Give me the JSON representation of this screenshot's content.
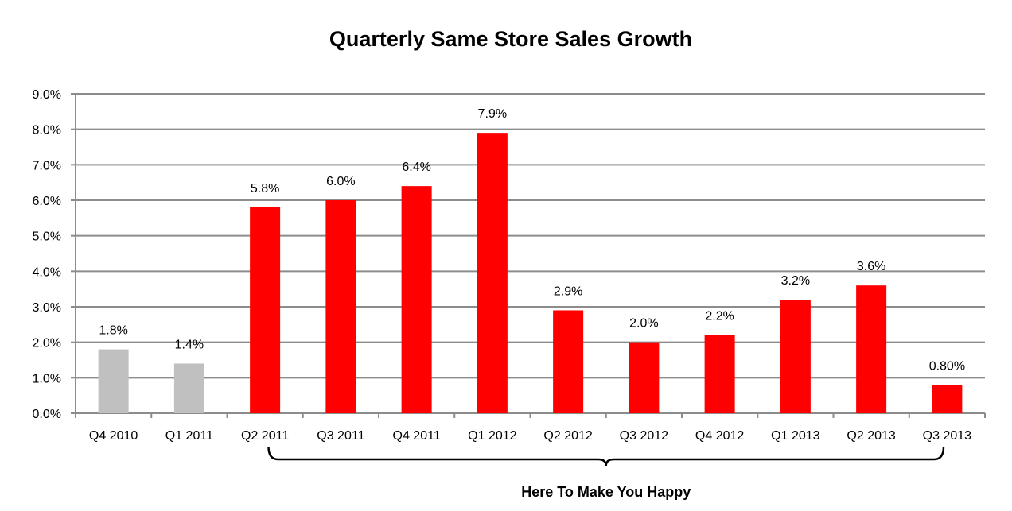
{
  "chart_data": {
    "type": "bar",
    "title": "Quarterly Same Store Sales Growth",
    "categories": [
      "Q4 2010",
      "Q1 2011",
      "Q2 2011",
      "Q3 2011",
      "Q4 2011",
      "Q1 2012",
      "Q2 2012",
      "Q3 2012",
      "Q4 2012",
      "Q1 2013",
      "Q2 2013",
      "Q3 2013"
    ],
    "values": [
      1.8,
      1.4,
      5.8,
      6.0,
      6.4,
      7.9,
      2.9,
      2.0,
      2.2,
      3.2,
      3.6,
      0.8
    ],
    "data_labels": [
      "1.8%",
      "1.4%",
      "5.8%",
      "6.0%",
      "6.4%",
      "7.9%",
      "2.9%",
      "2.0%",
      "2.2%",
      "3.2%",
      "3.6%",
      "0.80%"
    ],
    "bar_colors": [
      "#c0c0c0",
      "#c0c0c0",
      "#ff0000",
      "#ff0000",
      "#ff0000",
      "#ff0000",
      "#ff0000",
      "#ff0000",
      "#ff0000",
      "#ff0000",
      "#ff0000",
      "#ff0000"
    ],
    "ylim": [
      0,
      9
    ],
    "yticks": [
      "0.0%",
      "1.0%",
      "2.0%",
      "3.0%",
      "4.0%",
      "5.0%",
      "6.0%",
      "7.0%",
      "8.0%",
      "9.0%"
    ],
    "grid": true,
    "xlabel": "",
    "ylabel": "",
    "annotations": [
      {
        "text": "Here To Make You Happy",
        "from": "Q2 2011",
        "to": "Q3 2013"
      }
    ]
  }
}
